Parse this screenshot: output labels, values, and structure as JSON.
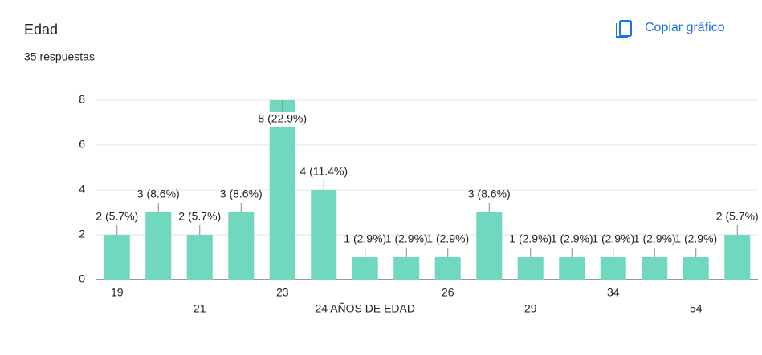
{
  "chart_data": {
    "type": "bar",
    "title": "Edad",
    "subtitle": "35 respuestas",
    "categories": [
      "19",
      null,
      "21",
      null,
      "23",
      null,
      "24 AÑOS DE EDAD",
      null,
      "26",
      null,
      "29",
      null,
      "34",
      null,
      "54",
      null
    ],
    "values": [
      2,
      3,
      2,
      3,
      8,
      4,
      1,
      1,
      1,
      3,
      1,
      1,
      1,
      1,
      1,
      2
    ],
    "value_labels": [
      "2 (5.7%)",
      "3 (8.6%)",
      "2 (5.7%)",
      "3 (8.6%)",
      "8 (22.9%)",
      "4 (11.4%)",
      "1 (2.9%)",
      "1 (2.9%)",
      "1 (2.9%)",
      "3 (8.6%)",
      "1 (2.9%)",
      "1 (2.9%)",
      "1 (2.9%)",
      "1 (2.9%)",
      "1 (2.9%)",
      "2 (5.7%)"
    ],
    "color": "#6fd8bf",
    "ylim": [
      0,
      8
    ],
    "yticks": [
      0,
      2,
      4,
      6,
      8
    ],
    "grid": true
  },
  "button": "Copiar gráfico"
}
